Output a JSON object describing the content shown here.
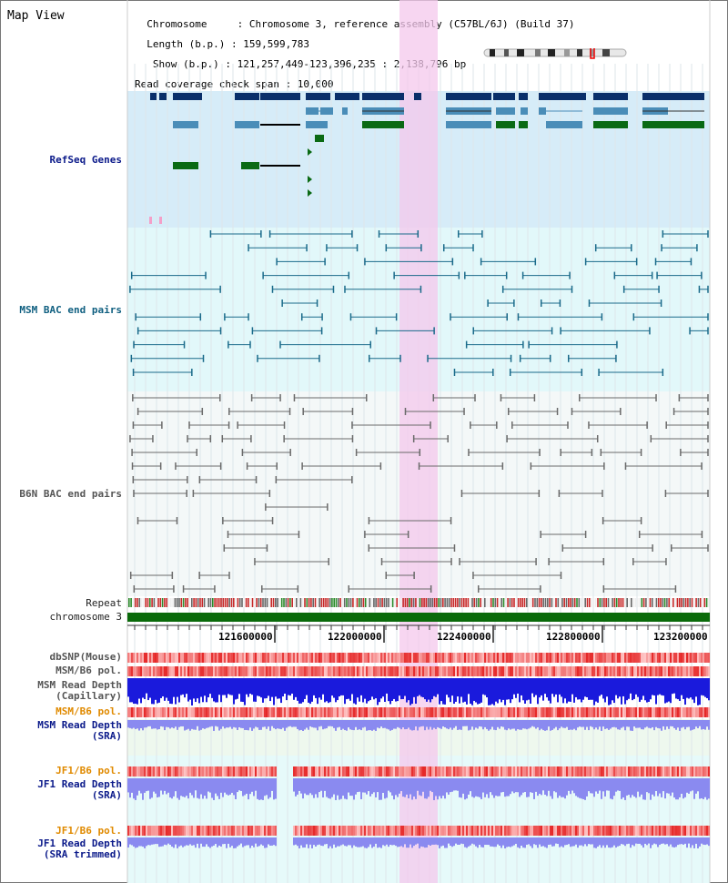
{
  "header": {
    "title": "Map View",
    "info_lines": [
      "  Chromosome     : Chromosome 3, reference assembly (C57BL/6J) (Build 37)",
      "  Length (b.p.) : 159,599,783",
      "   Show (b.p.) : 121,257,440-123,396,235 : 2,138,796 bp",
      "Read coverage check span : 10,000"
    ]
  },
  "tracks": {
    "refseq": "RefSeq Genes",
    "msm_bac": "MSM BAC end pairs",
    "b6n_bac": "B6N BAC end pairs",
    "repeat": "Repeat",
    "chromosome": "chromosome 3",
    "dbsnp": "dbSNP(Mouse)",
    "msm_b6_pol": "MSM/B6 pol.",
    "msm_depth_cap_1": "MSM Read Depth",
    "msm_depth_cap_2": "(Capillary)",
    "msm_b6_pol_sra": "MSM/B6 pol.",
    "msm_depth_sra_1": "MSM Read Depth",
    "msm_depth_sra_2": "(SRA)",
    "jf1_b6_pol": "JF1/B6 pol.",
    "jf1_depth_1": "JF1 Read Depth",
    "jf1_depth_2": "(SRA)",
    "jf1_b6_pol_trim": "JF1/B6 pol.",
    "jf1_trim_1": "JF1 Read Depth",
    "jf1_trim_2": "(SRA trimmed)"
  },
  "axis": {
    "ticks": [
      "121600000",
      "122000000",
      "122400000",
      "122800000",
      "123200000"
    ]
  },
  "colors": {
    "highlight": "#f4c8ec",
    "refseq_bg": "#d6ecf8",
    "msm_bg": "#e2f8fa",
    "b6n_bg": "#f4f8f8",
    "dark_gene": "#0a2f6a",
    "mid_gene": "#4a8db8",
    "green_gene": "#0a6a14",
    "chromosome": "#0a6a0a"
  }
}
